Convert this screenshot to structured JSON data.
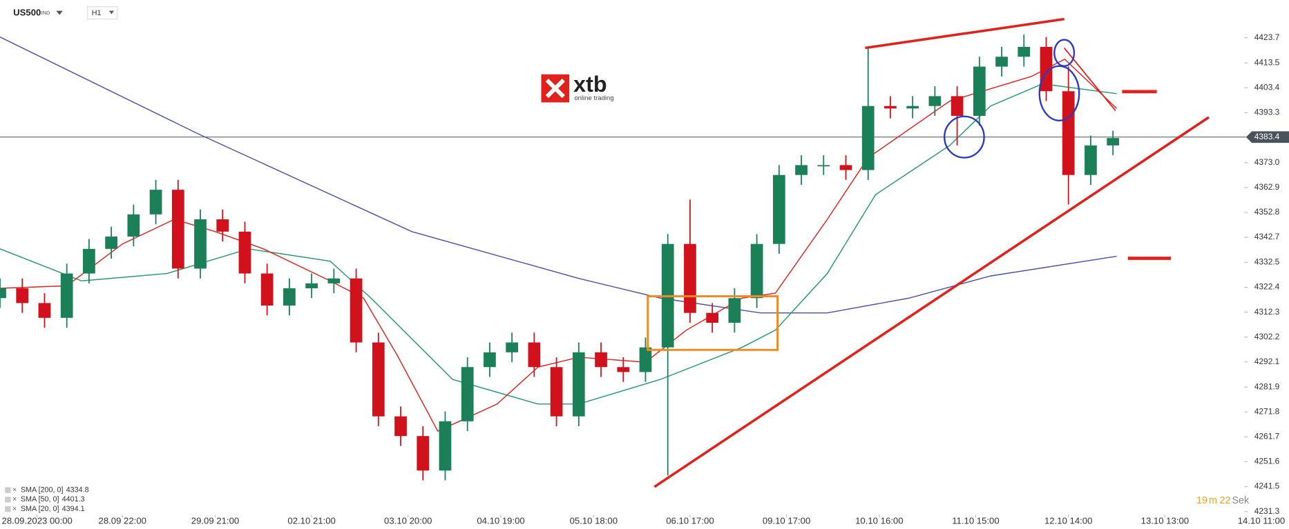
{
  "header": {
    "symbol": "US500",
    "market": "IND",
    "timeframe": "H1"
  },
  "logo": {
    "brand": "xtb",
    "tagline": "online trading"
  },
  "timer": {
    "minutes": 19,
    "minutes_unit": "m",
    "seconds": 22,
    "seconds_unit": "Sek"
  },
  "chart_data": {
    "type": "candlestick",
    "x": [
      0,
      6,
      12,
      18,
      24,
      30,
      36,
      42,
      48,
      54,
      60,
      66,
      72,
      78,
      84,
      90,
      96,
      102,
      108,
      114,
      120,
      126,
      132,
      138,
      144,
      150,
      156,
      162,
      168,
      174,
      180,
      186,
      192,
      198,
      204,
      210,
      216,
      222,
      228,
      234,
      240,
      246,
      252,
      258,
      264,
      270,
      276,
      282,
      288,
      294,
      300
    ],
    "open": [
      4318,
      4322,
      4316,
      4310,
      4328,
      4338,
      4343,
      4352,
      4362,
      4330,
      4350,
      4345,
      4328,
      4315,
      4322,
      4324,
      4326,
      4300,
      4270,
      4262,
      4248,
      4268,
      4290,
      4296,
      4300,
      4290,
      4270,
      4296,
      4290,
      4288,
      4298,
      4340,
      4312,
      4308,
      4318,
      4340,
      4368,
      4372,
      4372,
      4370,
      4396,
      4395,
      4396,
      4400,
      4392,
      4412,
      4416,
      4420,
      4402,
      4368,
      4380
    ],
    "high": [
      4326,
      4326,
      4320,
      4332,
      4342,
      4347,
      4356,
      4366,
      4366,
      4354,
      4354,
      4349,
      4332,
      4326,
      4328,
      4330,
      4330,
      4304,
      4274,
      4266,
      4272,
      4294,
      4300,
      4304,
      4304,
      4294,
      4300,
      4300,
      4294,
      4302,
      4344,
      4358,
      4316,
      4322,
      4344,
      4372,
      4376,
      4376,
      4376,
      4420,
      4400,
      4400,
      4404,
      4404,
      4416,
      4420,
      4425,
      4424,
      4412,
      4384,
      4386
    ],
    "low": [
      4314,
      4312,
      4306,
      4306,
      4324,
      4334,
      4339,
      4348,
      4326,
      4326,
      4341,
      4324,
      4311,
      4311,
      4318,
      4320,
      4296,
      4266,
      4258,
      4244,
      4244,
      4264,
      4286,
      4292,
      4286,
      4266,
      4266,
      4286,
      4284,
      4284,
      4246,
      4308,
      4304,
      4304,
      4314,
      4336,
      4364,
      4368,
      4366,
      4366,
      4391,
      4391,
      4392,
      4380,
      4388,
      4408,
      4412,
      4398,
      4356,
      4364,
      4376
    ],
    "close": [
      4322,
      4316,
      4310,
      4328,
      4338,
      4343,
      4352,
      4362,
      4330,
      4350,
      4345,
      4328,
      4315,
      4322,
      4324,
      4326,
      4300,
      4270,
      4262,
      4248,
      4268,
      4290,
      4296,
      4300,
      4290,
      4270,
      4296,
      4290,
      4288,
      4298,
      4340,
      4312,
      4308,
      4318,
      4340,
      4368,
      4372,
      4372,
      4370,
      4396,
      4395,
      4396,
      4400,
      4392,
      4412,
      4416,
      4420,
      4402,
      4368,
      4380,
      4383
    ],
    "up_color": "#1b7f57",
    "down_color": "#d1121c",
    "xlim": [
      0,
      345
    ],
    "ylim": [
      4230,
      4439
    ],
    "yticks": [
      4423.7,
      4413.5,
      4403.4,
      4393.3,
      {
        "value": 4373,
        "label": "4373.0"
      },
      4362.9,
      4352.8,
      4342.7,
      4332.5,
      4322.4,
      4312.3,
      4302.2,
      4292.1,
      4281.9,
      4271.8,
      4261.7,
      4251.6,
      4241.5,
      4231.3
    ],
    "xticks": [
      {
        "value": 10,
        "label": "28.09.2023  00:00"
      },
      {
        "value": 33,
        "label": "28.09  22:00"
      },
      {
        "value": 58,
        "label": "29.09  21:00"
      },
      {
        "value": 84,
        "label": "02.10  21:00"
      },
      {
        "value": 110,
        "label": "03.10  20:00"
      },
      {
        "value": 135,
        "label": "04.10  19:00"
      },
      {
        "value": 160,
        "label": "05.10  18:00"
      },
      {
        "value": 186,
        "label": "06.10  17:00"
      },
      {
        "value": 212,
        "label": "09.10  17:00"
      },
      {
        "value": 237,
        "label": "10.10  16:00"
      },
      {
        "value": 263,
        "label": "11.10  15:00"
      },
      {
        "value": 288,
        "label": "12.10  14:00"
      },
      {
        "value": 314,
        "label": "13.10  13:00"
      },
      {
        "value": 340,
        "label": "14.10  11:00"
      }
    ],
    "last_price": 4383.4,
    "indicators": [
      {
        "name": "SMA [200, 0]",
        "last": 4334.8,
        "color": "#4a4fa8",
        "x": [
          0,
          53,
          111,
          156,
          178,
          205,
          223,
          245,
          267,
          301
        ],
        "values": [
          4424,
          4385,
          4345,
          4326,
          4318,
          4312,
          4312,
          4318,
          4327,
          4335
        ]
      },
      {
        "name": "SMA [50, 0]",
        "last": 4401.3,
        "color": "#1f9a66",
        "x": [
          0,
          22,
          45,
          67,
          89,
          100,
          122,
          145,
          156,
          178,
          200,
          209,
          223,
          236,
          256,
          267,
          281,
          301
        ],
        "values": [
          4338,
          4325,
          4328,
          4338,
          4333,
          4318,
          4285,
          4275,
          4275,
          4285,
          4298,
          4305,
          4328,
          4360,
          4380,
          4396,
          4405,
          4401
        ]
      },
      {
        "name": "SMA [20, 0]",
        "last": 4394.1,
        "color": "#e0211c",
        "x": [
          0,
          18,
          33,
          47,
          58,
          71,
          89,
          98,
          107,
          118,
          134,
          145,
          156,
          174,
          185,
          200,
          209,
          223,
          234,
          256,
          278,
          287,
          301
        ],
        "values": [
          4322,
          4323,
          4340,
          4350,
          4345,
          4338,
          4325,
          4318,
          4295,
          4264,
          4275,
          4290,
          4294,
          4292,
          4305,
          4318,
          4320,
          4350,
          4375,
          4398,
          4408,
          4415,
          4395
        ]
      }
    ]
  }
}
